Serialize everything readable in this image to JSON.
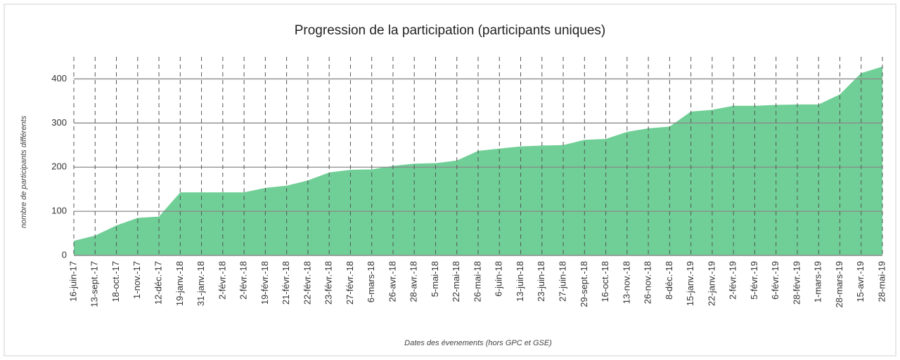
{
  "chart_data": {
    "type": "area",
    "title": "Progression de la participation (participants uniques)",
    "y_label": "nombre de participants différents",
    "x_label": "Dates des évenements (hors GPC et GSE)",
    "categories": [
      "16-juin-17",
      "13-sept.-17",
      "18-oct.-17",
      "1-nov.-17",
      "12-déc.-17",
      "19-janv.-18",
      "31-janv.-18",
      "2-févr.-18",
      "2-févr.-18",
      "19-févr.-18",
      "21-févr.-18",
      "22-févr.-18",
      "23-févr.-18",
      "27-févr.-18",
      "6-mars-18",
      "26-avr.-18",
      "28-avr.-18",
      "5-mai-18",
      "22-mai-18",
      "26-mai-18",
      "6-juin-18",
      "13-juin-18",
      "23-juin-18",
      "27-juin-18",
      "29-sept.-18",
      "16-oct.-18",
      "13-nov.-18",
      "26-nov.-18",
      "8-déc.-18",
      "15-janv.-19",
      "22-janv.-19",
      "2-févr.-19",
      "5-févr.-19",
      "6-févr.-19",
      "28-févr.-19",
      "1-mars-19",
      "28-mars-19",
      "15-avr.-19",
      "28-mai-19"
    ],
    "values": [
      33,
      45,
      68,
      85,
      88,
      143,
      143,
      143,
      143,
      153,
      158,
      170,
      188,
      194,
      195,
      203,
      208,
      209,
      215,
      237,
      242,
      247,
      249,
      250,
      262,
      264,
      280,
      288,
      292,
      326,
      330,
      339,
      339,
      341,
      342,
      342,
      365,
      413,
      428
    ],
    "color": "#70cf96",
    "ylim": [
      0,
      450
    ],
    "yticks": [
      0,
      100,
      200,
      300,
      400
    ],
    "grid": true
  }
}
